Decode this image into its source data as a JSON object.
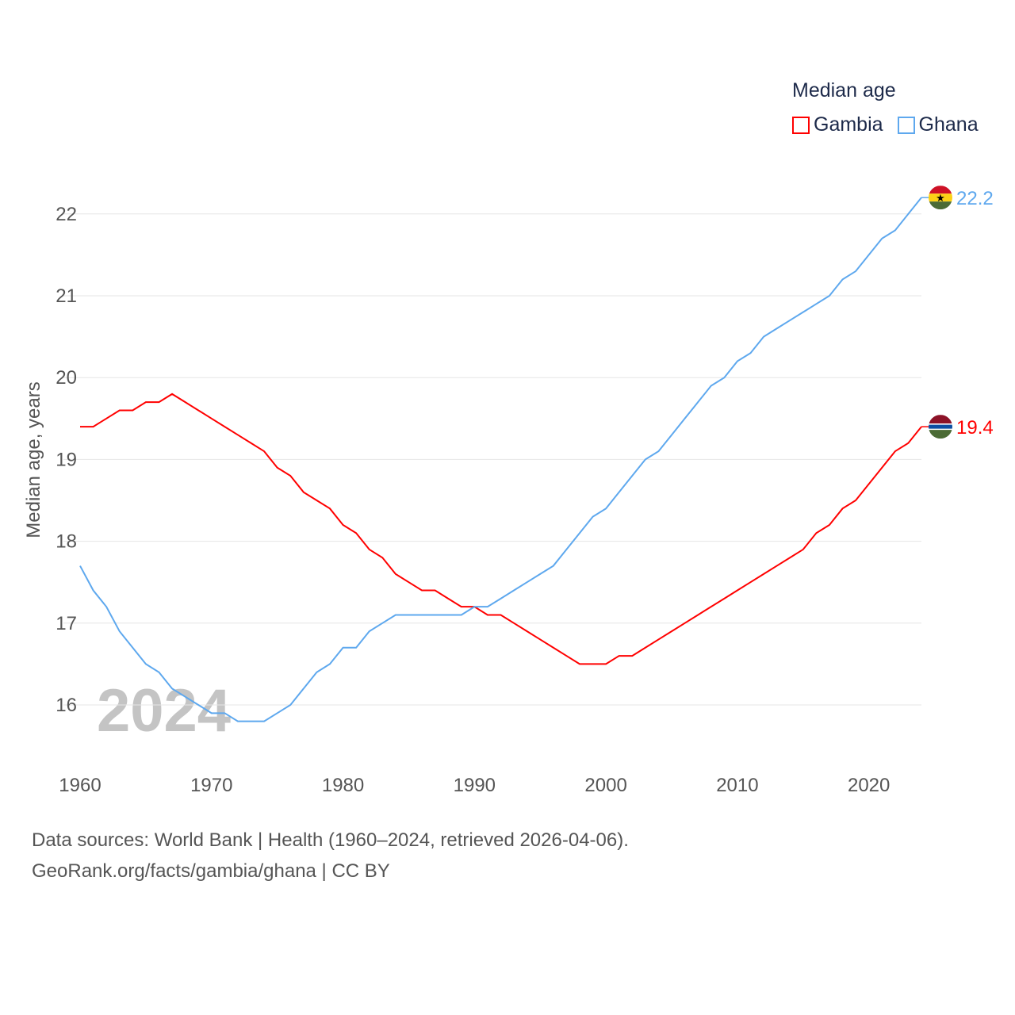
{
  "chart_data": {
    "type": "line",
    "title": "Median age",
    "ylabel": "Median age, years",
    "xlabel": "",
    "xlim": [
      1960,
      2024
    ],
    "ylim": [
      15.4,
      22.4
    ],
    "x_ticks": [
      1960,
      1970,
      1980,
      1990,
      2000,
      2010,
      2020
    ],
    "y_ticks": [
      16,
      17,
      18,
      19,
      20,
      21,
      22
    ],
    "grid": true,
    "legend_position": "top-right",
    "year_watermark": "2024",
    "x": [
      1960,
      1961,
      1962,
      1963,
      1964,
      1965,
      1966,
      1967,
      1968,
      1969,
      1970,
      1971,
      1972,
      1973,
      1974,
      1975,
      1976,
      1977,
      1978,
      1979,
      1980,
      1981,
      1982,
      1983,
      1984,
      1985,
      1986,
      1987,
      1988,
      1989,
      1990,
      1991,
      1992,
      1993,
      1994,
      1995,
      1996,
      1997,
      1998,
      1999,
      2000,
      2001,
      2002,
      2003,
      2004,
      2005,
      2006,
      2007,
      2008,
      2009,
      2010,
      2011,
      2012,
      2013,
      2014,
      2015,
      2016,
      2017,
      2018,
      2019,
      2020,
      2021,
      2022,
      2023,
      2024
    ],
    "series": [
      {
        "name": "Gambia",
        "color": "#ff0000",
        "end_label": "19.4",
        "values": [
          19.4,
          19.4,
          19.5,
          19.6,
          19.6,
          19.7,
          19.7,
          19.8,
          19.7,
          19.6,
          19.5,
          19.4,
          19.3,
          19.2,
          19.1,
          18.9,
          18.8,
          18.6,
          18.5,
          18.4,
          18.2,
          18.1,
          17.9,
          17.8,
          17.6,
          17.5,
          17.4,
          17.4,
          17.3,
          17.2,
          17.2,
          17.1,
          17.1,
          17.0,
          16.9,
          16.8,
          16.7,
          16.6,
          16.5,
          16.5,
          16.5,
          16.6,
          16.6,
          16.7,
          16.8,
          16.9,
          17.0,
          17.1,
          17.2,
          17.3,
          17.4,
          17.5,
          17.6,
          17.7,
          17.8,
          17.9,
          18.1,
          18.2,
          18.4,
          18.5,
          18.7,
          18.9,
          19.1,
          19.2,
          19.4
        ]
      },
      {
        "name": "Ghana",
        "color": "#5ea8ee",
        "end_label": "22.2",
        "values": [
          17.7,
          17.4,
          17.2,
          16.9,
          16.7,
          16.5,
          16.4,
          16.2,
          16.1,
          16.0,
          15.9,
          15.9,
          15.8,
          15.8,
          15.8,
          15.9,
          16.0,
          16.2,
          16.4,
          16.5,
          16.7,
          16.7,
          16.9,
          17.0,
          17.1,
          17.1,
          17.1,
          17.1,
          17.1,
          17.1,
          17.2,
          17.2,
          17.3,
          17.4,
          17.5,
          17.6,
          17.7,
          17.9,
          18.1,
          18.3,
          18.4,
          18.6,
          18.8,
          19.0,
          19.1,
          19.3,
          19.5,
          19.7,
          19.9,
          20.0,
          20.2,
          20.3,
          20.5,
          20.6,
          20.7,
          20.8,
          20.9,
          21.0,
          21.2,
          21.3,
          21.5,
          21.7,
          21.8,
          22.0,
          22.2
        ]
      }
    ]
  },
  "footer": {
    "line1": "Data sources: World Bank | Health (1960–2024, retrieved 2026-04-06).",
    "line2": "GeoRank.org/facts/gambia/ghana | CC BY"
  }
}
